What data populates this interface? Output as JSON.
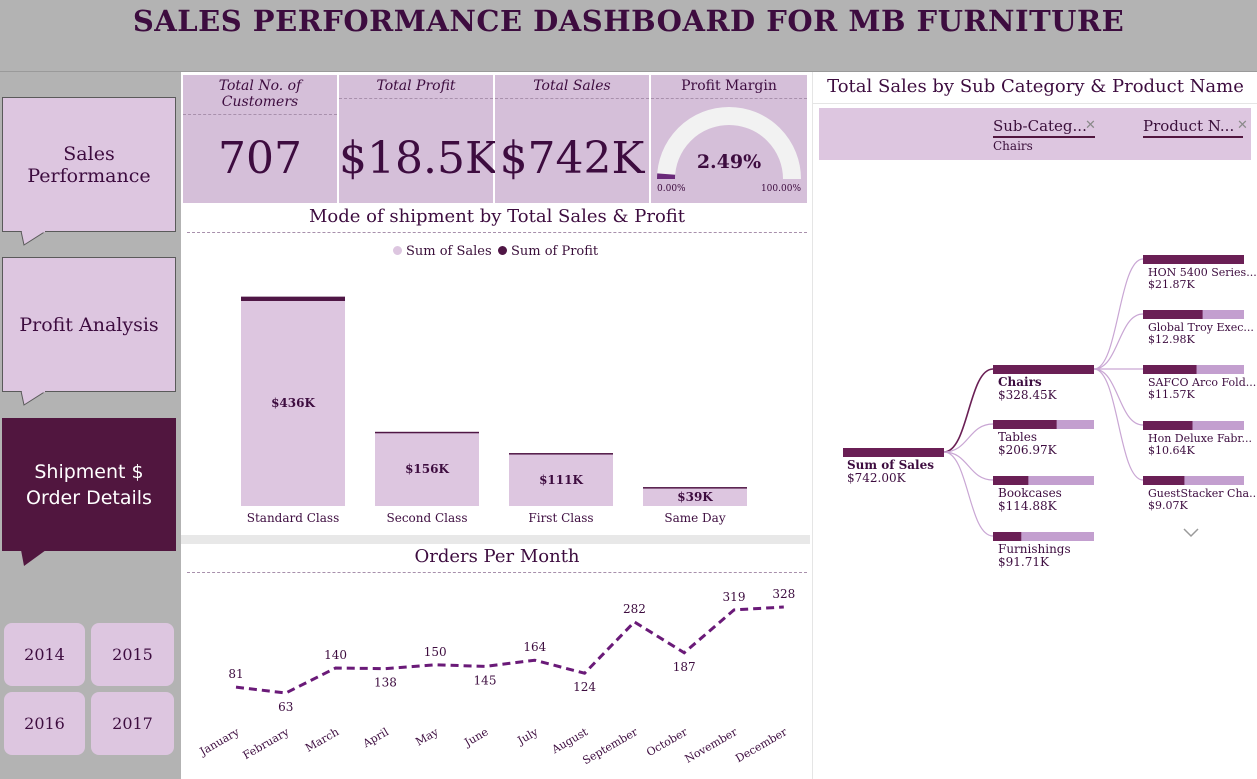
{
  "header": {
    "title": "SALES PERFORMANCE DASHBOARD FOR MB FURNITURE"
  },
  "nav": {
    "sales_performance": "Sales Performance",
    "profit_analysis": "Profit Analysis",
    "shipment_order_details": "Shipment $ Order Details"
  },
  "years": [
    "2014",
    "2015",
    "2016",
    "2017"
  ],
  "kpis": {
    "customers": {
      "label": "Total No. of Customers",
      "value": "707"
    },
    "profit": {
      "label": "Total Profit",
      "value": "$18.5K"
    },
    "sales": {
      "label": "Total Sales",
      "value": "$742K"
    },
    "margin": {
      "label": "Profit Margin",
      "value": "2.49%",
      "min": "0.00%",
      "max": "100.00%",
      "fraction": 0.0249
    }
  },
  "colors": {
    "primary": "#51163f",
    "light": "#ddc6e0",
    "card": "#d5bfd9",
    "sales_bar": "#ddc6e0",
    "profit_bar": "#4f1645",
    "line": "#6a1a78"
  },
  "shipment_chart": {
    "title": "Mode of shipment by Total Sales & Profit",
    "legend": [
      "Sum of Sales",
      "Sum of Profit"
    ]
  },
  "orders_chart": {
    "title": "Orders Per Month"
  },
  "decomp": {
    "title": "Total Sales by Sub Category & Product Name",
    "filter1_label": "Sub-Categ...",
    "filter1_value": "Chairs",
    "filter2_label": "Product N...",
    "root": {
      "label": "Sum of Sales",
      "value": "$742.00K"
    },
    "subcategories": [
      {
        "label": "Chairs",
        "value": "$328.45K",
        "fill": 1.0
      },
      {
        "label": "Tables",
        "value": "$206.97K",
        "fill": 0.63
      },
      {
        "label": "Bookcases",
        "value": "$114.88K",
        "fill": 0.35
      },
      {
        "label": "Furnishings",
        "value": "$91.71K",
        "fill": 0.28
      }
    ],
    "products": [
      {
        "label": "HON 5400 Series...",
        "value": "$21.87K",
        "fill": 1.0
      },
      {
        "label": "Global Troy Exec...",
        "value": "$12.98K",
        "fill": 0.59
      },
      {
        "label": "SAFCO Arco Fold...",
        "value": "$11.57K",
        "fill": 0.53
      },
      {
        "label": "Hon Deluxe Fabr...",
        "value": "$10.64K",
        "fill": 0.49
      },
      {
        "label": "GuestStacker Cha...",
        "value": "$9.07K",
        "fill": 0.41
      }
    ]
  },
  "chart_data": [
    {
      "type": "bar",
      "title": "Mode of shipment by Total Sales & Profit",
      "categories": [
        "Standard Class",
        "Second Class",
        "First Class",
        "Same Day"
      ],
      "series": [
        {
          "name": "Sum of Sales",
          "values": [
            436,
            156,
            111,
            39
          ]
        },
        {
          "name": "Sum of Profit",
          "values": [
            10,
            2,
            2,
            1
          ]
        }
      ],
      "data_labels": [
        "$436K",
        "$156K",
        "$111K",
        "$39K"
      ],
      "ylim": [
        0,
        450
      ],
      "legend": "top-center",
      "grid": false
    },
    {
      "type": "line",
      "title": "Orders Per Month",
      "x": [
        "January",
        "February",
        "March",
        "April",
        "May",
        "June",
        "July",
        "August",
        "September",
        "October",
        "November",
        "December"
      ],
      "series": [
        {
          "values": [
            81,
            63,
            140,
            138,
            150,
            145,
            164,
            124,
            282,
            187,
            319,
            328
          ]
        }
      ],
      "grid": false
    }
  ]
}
